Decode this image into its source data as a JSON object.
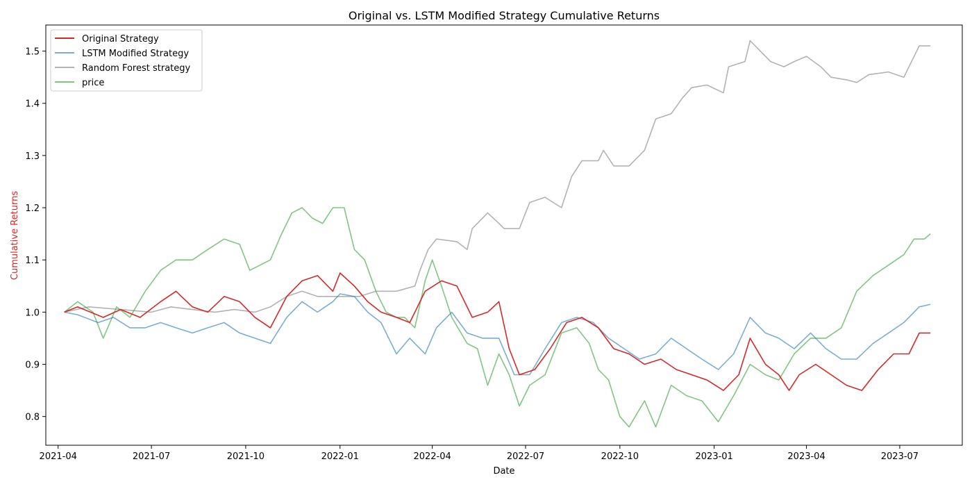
{
  "chart_data": {
    "type": "line",
    "title": "Original vs. LSTM Modified Strategy Cumulative Returns",
    "xlabel": "Date",
    "ylabel": "Cumulative Returns",
    "ylabel_color": "#d62728",
    "x_range": [
      "2021-03-20",
      "2023-08-31"
    ],
    "ylim": [
      0.745,
      1.55
    ],
    "x_ticks": [
      "2021-04",
      "2021-07",
      "2021-10",
      "2022-01",
      "2022-04",
      "2022-07",
      "2022-10",
      "2023-01",
      "2023-04",
      "2023-07"
    ],
    "y_ticks": [
      "0.8",
      "0.9",
      "1.0",
      "1.1",
      "1.2",
      "1.3",
      "1.4",
      "1.5"
    ],
    "grid": false,
    "legend_position": "upper-left",
    "series": [
      {
        "name": "Original Strategy",
        "color": "#d62728",
        "opacity": 1,
        "points": [
          [
            "2021-04-07",
            1.0
          ],
          [
            "2021-04-20",
            1.01
          ],
          [
            "2021-05-15",
            0.99
          ],
          [
            "2021-06-01",
            1.005
          ],
          [
            "2021-06-20",
            0.99
          ],
          [
            "2021-07-10",
            1.02
          ],
          [
            "2021-07-25",
            1.04
          ],
          [
            "2021-08-10",
            1.01
          ],
          [
            "2021-08-25",
            1.0
          ],
          [
            "2021-09-10",
            1.03
          ],
          [
            "2021-09-25",
            1.02
          ],
          [
            "2021-10-10",
            0.99
          ],
          [
            "2021-10-25",
            0.97
          ],
          [
            "2021-11-10",
            1.03
          ],
          [
            "2021-11-25",
            1.06
          ],
          [
            "2021-12-10",
            1.07
          ],
          [
            "2021-12-25",
            1.04
          ],
          [
            "2022-01-01",
            1.075
          ],
          [
            "2022-01-15",
            1.05
          ],
          [
            "2022-01-28",
            1.02
          ],
          [
            "2022-02-10",
            1.0
          ],
          [
            "2022-02-25",
            0.99
          ],
          [
            "2022-03-10",
            0.98
          ],
          [
            "2022-03-25",
            1.04
          ],
          [
            "2022-04-10",
            1.06
          ],
          [
            "2022-04-25",
            1.05
          ],
          [
            "2022-05-10",
            0.99
          ],
          [
            "2022-05-25",
            1.0
          ],
          [
            "2022-06-05",
            1.02
          ],
          [
            "2022-06-15",
            0.93
          ],
          [
            "2022-06-25",
            0.88
          ],
          [
            "2022-07-10",
            0.89
          ],
          [
            "2022-07-25",
            0.93
          ],
          [
            "2022-08-10",
            0.98
          ],
          [
            "2022-08-25",
            0.99
          ],
          [
            "2022-09-10",
            0.97
          ],
          [
            "2022-09-25",
            0.93
          ],
          [
            "2022-10-10",
            0.92
          ],
          [
            "2022-10-25",
            0.9
          ],
          [
            "2022-11-10",
            0.91
          ],
          [
            "2022-11-25",
            0.89
          ],
          [
            "2022-12-10",
            0.88
          ],
          [
            "2022-12-25",
            0.87
          ],
          [
            "2023-01-10",
            0.85
          ],
          [
            "2023-01-25",
            0.88
          ],
          [
            "2023-02-05",
            0.95
          ],
          [
            "2023-02-20",
            0.9
          ],
          [
            "2023-03-05",
            0.88
          ],
          [
            "2023-03-15",
            0.85
          ],
          [
            "2023-03-25",
            0.88
          ],
          [
            "2023-04-10",
            0.9
          ],
          [
            "2023-04-25",
            0.88
          ],
          [
            "2023-05-10",
            0.86
          ],
          [
            "2023-05-25",
            0.85
          ],
          [
            "2023-06-10",
            0.89
          ],
          [
            "2023-06-25",
            0.92
          ],
          [
            "2023-07-10",
            0.92
          ],
          [
            "2023-07-20",
            0.96
          ],
          [
            "2023-07-31",
            0.96
          ]
        ]
      },
      {
        "name": "LSTM Modified Strategy",
        "color": "#1f77b4",
        "opacity": 0.6,
        "points": [
          [
            "2021-04-07",
            1.0
          ],
          [
            "2021-04-20",
            0.995
          ],
          [
            "2021-05-10",
            0.98
          ],
          [
            "2021-05-25",
            0.99
          ],
          [
            "2021-06-10",
            0.97
          ],
          [
            "2021-06-25",
            0.97
          ],
          [
            "2021-07-10",
            0.98
          ],
          [
            "2021-07-25",
            0.97
          ],
          [
            "2021-08-10",
            0.96
          ],
          [
            "2021-08-25",
            0.97
          ],
          [
            "2021-09-10",
            0.98
          ],
          [
            "2021-09-25",
            0.96
          ],
          [
            "2021-10-10",
            0.95
          ],
          [
            "2021-10-25",
            0.94
          ],
          [
            "2021-11-10",
            0.99
          ],
          [
            "2021-11-25",
            1.02
          ],
          [
            "2021-12-10",
            1.0
          ],
          [
            "2021-12-25",
            1.02
          ],
          [
            "2022-01-01",
            1.035
          ],
          [
            "2022-01-15",
            1.03
          ],
          [
            "2022-01-28",
            1.0
          ],
          [
            "2022-02-10",
            0.98
          ],
          [
            "2022-02-25",
            0.92
          ],
          [
            "2022-03-10",
            0.95
          ],
          [
            "2022-03-25",
            0.92
          ],
          [
            "2022-04-05",
            0.97
          ],
          [
            "2022-04-20",
            1.0
          ],
          [
            "2022-05-05",
            0.96
          ],
          [
            "2022-05-20",
            0.95
          ],
          [
            "2022-06-05",
            0.95
          ],
          [
            "2022-06-20",
            0.88
          ],
          [
            "2022-07-05",
            0.88
          ],
          [
            "2022-07-20",
            0.93
          ],
          [
            "2022-08-05",
            0.98
          ],
          [
            "2022-08-20",
            0.99
          ],
          [
            "2022-09-05",
            0.98
          ],
          [
            "2022-09-20",
            0.95
          ],
          [
            "2022-10-05",
            0.93
          ],
          [
            "2022-10-20",
            0.91
          ],
          [
            "2022-11-05",
            0.92
          ],
          [
            "2022-11-20",
            0.95
          ],
          [
            "2022-12-05",
            0.93
          ],
          [
            "2022-12-20",
            0.91
          ],
          [
            "2023-01-05",
            0.89
          ],
          [
            "2023-01-20",
            0.92
          ],
          [
            "2023-02-05",
            0.99
          ],
          [
            "2023-02-20",
            0.96
          ],
          [
            "2023-03-05",
            0.95
          ],
          [
            "2023-03-20",
            0.93
          ],
          [
            "2023-04-05",
            0.96
          ],
          [
            "2023-04-20",
            0.93
          ],
          [
            "2023-05-05",
            0.91
          ],
          [
            "2023-05-20",
            0.91
          ],
          [
            "2023-06-05",
            0.94
          ],
          [
            "2023-06-20",
            0.96
          ],
          [
            "2023-07-05",
            0.98
          ],
          [
            "2023-07-20",
            1.01
          ],
          [
            "2023-07-31",
            1.015
          ]
        ]
      },
      {
        "name": "Random Forest strategy",
        "color": "#7f7f7f",
        "opacity": 0.6,
        "points": [
          [
            "2021-04-07",
            1.0
          ],
          [
            "2021-05-01",
            1.01
          ],
          [
            "2021-06-01",
            1.005
          ],
          [
            "2021-07-01",
            1.0
          ],
          [
            "2021-07-20",
            1.01
          ],
          [
            "2021-08-10",
            1.005
          ],
          [
            "2021-09-01",
            1.0
          ],
          [
            "2021-09-20",
            1.005
          ],
          [
            "2021-10-10",
            1.0
          ],
          [
            "2021-10-25",
            1.01
          ],
          [
            "2021-11-10",
            1.03
          ],
          [
            "2021-11-25",
            1.04
          ],
          [
            "2021-12-10",
            1.03
          ],
          [
            "2022-01-01",
            1.03
          ],
          [
            "2022-01-20",
            1.03
          ],
          [
            "2022-02-05",
            1.04
          ],
          [
            "2022-02-25",
            1.04
          ],
          [
            "2022-03-15",
            1.05
          ],
          [
            "2022-03-20",
            1.08
          ],
          [
            "2022-03-28",
            1.12
          ],
          [
            "2022-04-05",
            1.14
          ],
          [
            "2022-04-25",
            1.135
          ],
          [
            "2022-05-05",
            1.12
          ],
          [
            "2022-05-10",
            1.16
          ],
          [
            "2022-05-25",
            1.19
          ],
          [
            "2022-06-05",
            1.17
          ],
          [
            "2022-06-10",
            1.16
          ],
          [
            "2022-06-25",
            1.16
          ],
          [
            "2022-07-05",
            1.21
          ],
          [
            "2022-07-20",
            1.22
          ],
          [
            "2022-08-05",
            1.2
          ],
          [
            "2022-08-15",
            1.26
          ],
          [
            "2022-08-25",
            1.29
          ],
          [
            "2022-09-10",
            1.29
          ],
          [
            "2022-09-15",
            1.31
          ],
          [
            "2022-09-25",
            1.28
          ],
          [
            "2022-10-10",
            1.28
          ],
          [
            "2022-10-25",
            1.31
          ],
          [
            "2022-11-05",
            1.37
          ],
          [
            "2022-11-20",
            1.38
          ],
          [
            "2022-12-01",
            1.41
          ],
          [
            "2022-12-10",
            1.43
          ],
          [
            "2022-12-25",
            1.435
          ],
          [
            "2023-01-10",
            1.42
          ],
          [
            "2023-01-15",
            1.47
          ],
          [
            "2023-01-31",
            1.48
          ],
          [
            "2023-02-05",
            1.52
          ],
          [
            "2023-02-15",
            1.5
          ],
          [
            "2023-02-25",
            1.48
          ],
          [
            "2023-03-10",
            1.47
          ],
          [
            "2023-03-20",
            1.48
          ],
          [
            "2023-04-01",
            1.49
          ],
          [
            "2023-04-15",
            1.47
          ],
          [
            "2023-04-25",
            1.45
          ],
          [
            "2023-05-10",
            1.445
          ],
          [
            "2023-05-20",
            1.44
          ],
          [
            "2023-06-01",
            1.455
          ],
          [
            "2023-06-20",
            1.46
          ],
          [
            "2023-07-05",
            1.45
          ],
          [
            "2023-07-15",
            1.49
          ],
          [
            "2023-07-20",
            1.51
          ],
          [
            "2023-07-31",
            1.51
          ]
        ]
      },
      {
        "name": "price",
        "color": "#2ca02c",
        "opacity": 0.6,
        "points": [
          [
            "2021-04-07",
            1.0
          ],
          [
            "2021-04-20",
            1.02
          ],
          [
            "2021-05-05",
            1.0
          ],
          [
            "2021-05-15",
            0.95
          ],
          [
            "2021-05-28",
            1.01
          ],
          [
            "2021-06-10",
            0.99
          ],
          [
            "2021-06-25",
            1.04
          ],
          [
            "2021-07-10",
            1.08
          ],
          [
            "2021-07-25",
            1.1
          ],
          [
            "2021-08-10",
            1.1
          ],
          [
            "2021-08-25",
            1.12
          ],
          [
            "2021-09-10",
            1.14
          ],
          [
            "2021-09-25",
            1.13
          ],
          [
            "2021-10-05",
            1.08
          ],
          [
            "2021-10-15",
            1.09
          ],
          [
            "2021-10-25",
            1.1
          ],
          [
            "2021-11-05",
            1.15
          ],
          [
            "2021-11-15",
            1.19
          ],
          [
            "2021-11-25",
            1.2
          ],
          [
            "2021-12-05",
            1.18
          ],
          [
            "2021-12-15",
            1.17
          ],
          [
            "2021-12-25",
            1.2
          ],
          [
            "2022-01-05",
            1.2
          ],
          [
            "2022-01-15",
            1.12
          ],
          [
            "2022-01-25",
            1.1
          ],
          [
            "2022-02-05",
            1.04
          ],
          [
            "2022-02-15",
            1.0
          ],
          [
            "2022-02-25",
            0.99
          ],
          [
            "2022-03-05",
            0.99
          ],
          [
            "2022-03-15",
            0.97
          ],
          [
            "2022-03-25",
            1.06
          ],
          [
            "2022-04-01",
            1.1
          ],
          [
            "2022-04-10",
            1.05
          ],
          [
            "2022-04-20",
            0.99
          ],
          [
            "2022-05-05",
            0.94
          ],
          [
            "2022-05-15",
            0.93
          ],
          [
            "2022-05-25",
            0.86
          ],
          [
            "2022-06-05",
            0.92
          ],
          [
            "2022-06-15",
            0.88
          ],
          [
            "2022-06-25",
            0.82
          ],
          [
            "2022-07-05",
            0.86
          ],
          [
            "2022-07-20",
            0.88
          ],
          [
            "2022-08-05",
            0.96
          ],
          [
            "2022-08-20",
            0.97
          ],
          [
            "2022-09-01",
            0.94
          ],
          [
            "2022-09-10",
            0.89
          ],
          [
            "2022-09-20",
            0.87
          ],
          [
            "2022-10-01",
            0.8
          ],
          [
            "2022-10-10",
            0.78
          ],
          [
            "2022-10-25",
            0.83
          ],
          [
            "2022-11-05",
            0.78
          ],
          [
            "2022-11-20",
            0.86
          ],
          [
            "2022-12-05",
            0.84
          ],
          [
            "2022-12-20",
            0.83
          ],
          [
            "2023-01-05",
            0.79
          ],
          [
            "2023-01-20",
            0.84
          ],
          [
            "2023-02-05",
            0.9
          ],
          [
            "2023-02-20",
            0.88
          ],
          [
            "2023-03-05",
            0.87
          ],
          [
            "2023-03-20",
            0.92
          ],
          [
            "2023-04-05",
            0.95
          ],
          [
            "2023-04-20",
            0.95
          ],
          [
            "2023-05-05",
            0.97
          ],
          [
            "2023-05-20",
            1.04
          ],
          [
            "2023-06-05",
            1.07
          ],
          [
            "2023-06-20",
            1.09
          ],
          [
            "2023-07-05",
            1.11
          ],
          [
            "2023-07-15",
            1.14
          ],
          [
            "2023-07-25",
            1.14
          ],
          [
            "2023-07-31",
            1.15
          ]
        ]
      }
    ]
  }
}
